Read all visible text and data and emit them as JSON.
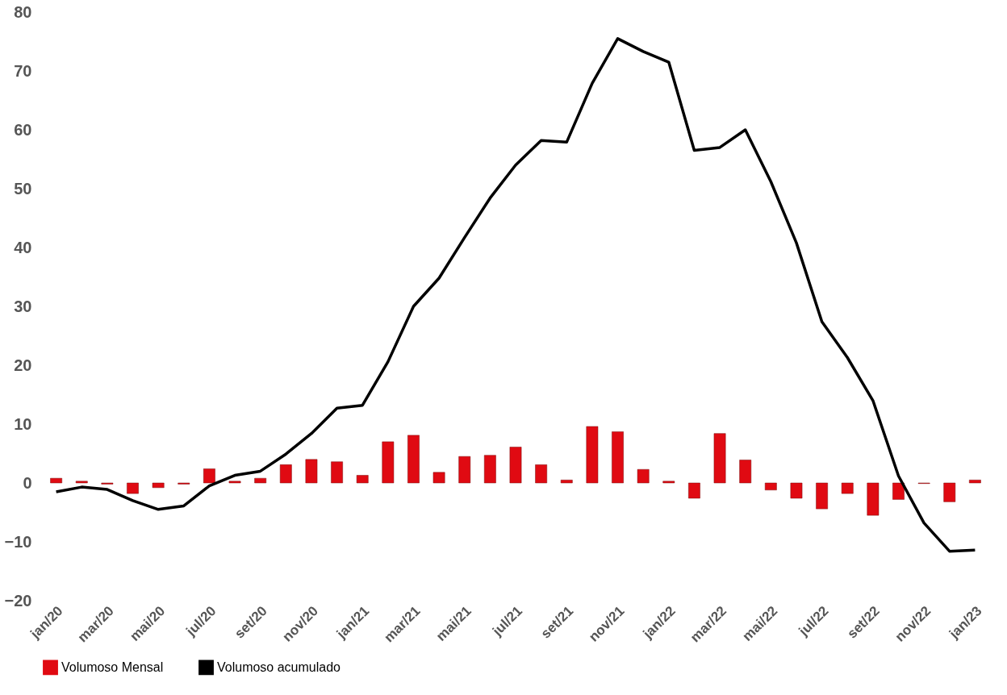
{
  "chart_data": {
    "type": "bar",
    "categories": [
      "jan/20",
      null,
      "mar/20",
      null,
      "mai/20",
      null,
      "jul/20",
      null,
      "set/20",
      null,
      "nov/20",
      null,
      "jan/21",
      null,
      "mar/21",
      null,
      "mai/21",
      null,
      "jul/21",
      null,
      "set/21",
      null,
      "nov/21",
      null,
      "jan/22",
      null,
      "mar/22",
      null,
      "mai/22",
      null,
      "jul/22",
      null,
      "set/22",
      null,
      "nov/22",
      null,
      "jan/23"
    ],
    "series": [
      {
        "name": "Volumoso Mensal",
        "color": "#e00a12",
        "values": [
          0.8,
          0.3,
          -0.2,
          -1.8,
          -0.8,
          -0.2,
          2.4,
          0.3,
          0.8,
          3.1,
          4.0,
          3.6,
          1.3,
          7.0,
          8.1,
          1.8,
          4.5,
          4.7,
          6.1,
          3.1,
          0.5,
          9.6,
          8.7,
          2.3,
          0.3,
          -2.6,
          8.4,
          3.9,
          -1.2,
          -2.6,
          -4.4,
          -1.8,
          -5.5,
          -2.8,
          -0.1,
          -3.2,
          0.5
        ]
      },
      {
        "name": "Volumoso acumulado",
        "type": "line",
        "color": "#000000",
        "values": [
          -1.5,
          -0.7,
          -1.1,
          -3.0,
          -4.5,
          -3.9,
          -0.5,
          1.3,
          2.0,
          4.9,
          8.4,
          12.7,
          13.2,
          20.6,
          30.0,
          34.8,
          41.7,
          48.4,
          54.0,
          58.2,
          57.9,
          67.9,
          75.5,
          73.3,
          71.5,
          56.5,
          57.0,
          60.0,
          51.2,
          40.8,
          27.4,
          21.3,
          14.0,
          1.2,
          -6.8,
          -11.6,
          -11.4
        ]
      }
    ],
    "ylim": [
      -20,
      80
    ],
    "yticks": [
      -20,
      -10,
      0,
      10,
      20,
      30,
      40,
      50,
      60,
      70,
      80
    ],
    "grid": false,
    "legend": "bottom",
    "marker": "none",
    "line_style": "solid"
  }
}
